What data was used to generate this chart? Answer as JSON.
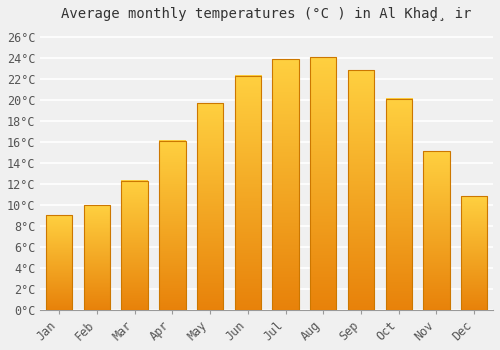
{
  "title": "Average monthly temperatures (°C ) in Al Khaḑ̧ ir",
  "months": [
    "Jan",
    "Feb",
    "Mar",
    "Apr",
    "May",
    "Jun",
    "Jul",
    "Aug",
    "Sep",
    "Oct",
    "Nov",
    "Dec"
  ],
  "temperatures": [
    9,
    10,
    12.3,
    16.1,
    19.7,
    22.3,
    23.9,
    24.1,
    22.8,
    20.1,
    15.1,
    10.8
  ],
  "ylim": [
    0,
    27
  ],
  "yticks": [
    0,
    2,
    4,
    6,
    8,
    10,
    12,
    14,
    16,
    18,
    20,
    22,
    24,
    26
  ],
  "ytick_labels": [
    "0°C",
    "2°C",
    "4°C",
    "6°C",
    "8°C",
    "10°C",
    "12°C",
    "14°C",
    "16°C",
    "18°C",
    "20°C",
    "22°C",
    "24°C",
    "26°C"
  ],
  "background_color": "#f0f0f0",
  "plot_bg_color": "#f0f0f0",
  "grid_color": "#ffffff",
  "bar_color_bottom": "#E8820A",
  "bar_color_top": "#FFD040",
  "bar_edge_color": "#CC7700",
  "title_fontsize": 10,
  "tick_fontsize": 8.5,
  "bar_width": 0.7
}
